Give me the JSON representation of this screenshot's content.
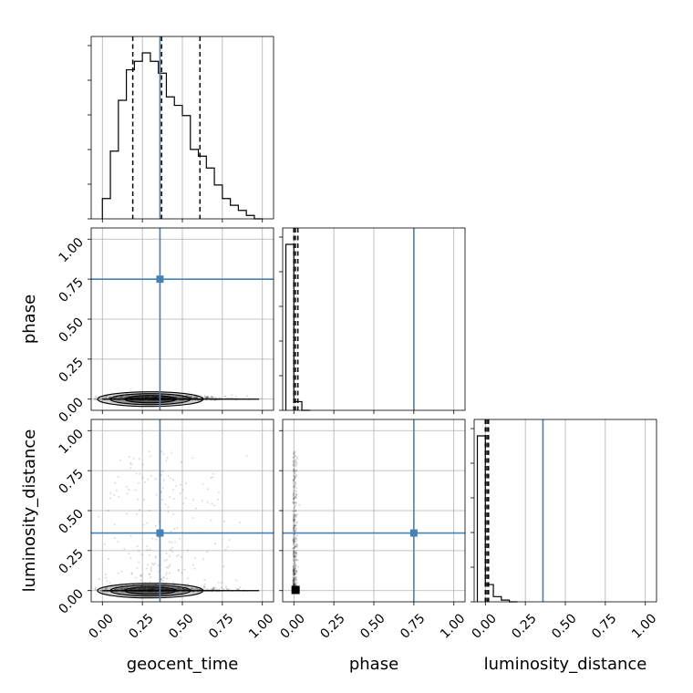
{
  "chart_data": {
    "type": "corner",
    "parameters": [
      "geocent_time",
      "phase",
      "luminosity_distance"
    ],
    "axis_range": [
      -0.07,
      1.07
    ],
    "ticks": [
      0.0,
      0.25,
      0.5,
      0.75,
      1.0
    ],
    "tick_labels": [
      "0.00",
      "0.25",
      "0.50",
      "0.75",
      "1.00"
    ],
    "grid": true,
    "truth_color": "#4682b4",
    "truths": {
      "geocent_time": 0.36,
      "phase": 0.75,
      "luminosity_distance": 0.36
    },
    "histograms": {
      "geocent_time": {
        "bin_edges": [
          0.0,
          0.05,
          0.1,
          0.15,
          0.2,
          0.25,
          0.3,
          0.35,
          0.4,
          0.45,
          0.5,
          0.55,
          0.6,
          0.65,
          0.7,
          0.75,
          0.8,
          0.85,
          0.9,
          0.95,
          1.0
        ],
        "counts": [
          0.12,
          0.4,
          0.7,
          0.88,
          0.93,
          0.98,
          0.93,
          0.86,
          0.72,
          0.67,
          0.61,
          0.41,
          0.37,
          0.3,
          0.2,
          0.12,
          0.08,
          0.05,
          0.02,
          0.0
        ],
        "quantiles": [
          0.19,
          0.37,
          0.61
        ]
      },
      "phase": {
        "bin_edges": [
          -0.05,
          0.0,
          0.05,
          0.1
        ],
        "counts": [
          0.95,
          0.05,
          0.0
        ],
        "quantiles": [
          0.0,
          0.01,
          0.025
        ]
      },
      "luminosity_distance": {
        "bin_edges": [
          -0.05,
          0.0,
          0.05,
          0.1,
          0.15,
          0.2
        ],
        "counts": [
          0.96,
          0.1,
          0.03,
          0.01,
          0.0
        ],
        "quantiles": [
          0.0,
          0.01,
          0.02
        ]
      }
    },
    "pairs": [
      {
        "x": "geocent_time",
        "y": "phase",
        "sample_spread": {
          "x": [
            0.0,
            1.0
          ],
          "y": [
            -0.02,
            0.05
          ]
        }
      },
      {
        "x": "geocent_time",
        "y": "luminosity_distance",
        "sample_spread": {
          "x": [
            0.0,
            1.0
          ],
          "y": [
            -0.02,
            0.87
          ]
        }
      },
      {
        "x": "phase",
        "y": "luminosity_distance",
        "sample_spread": {
          "x": [
            -0.02,
            0.03
          ],
          "y": [
            -0.02,
            0.87
          ]
        }
      }
    ]
  }
}
